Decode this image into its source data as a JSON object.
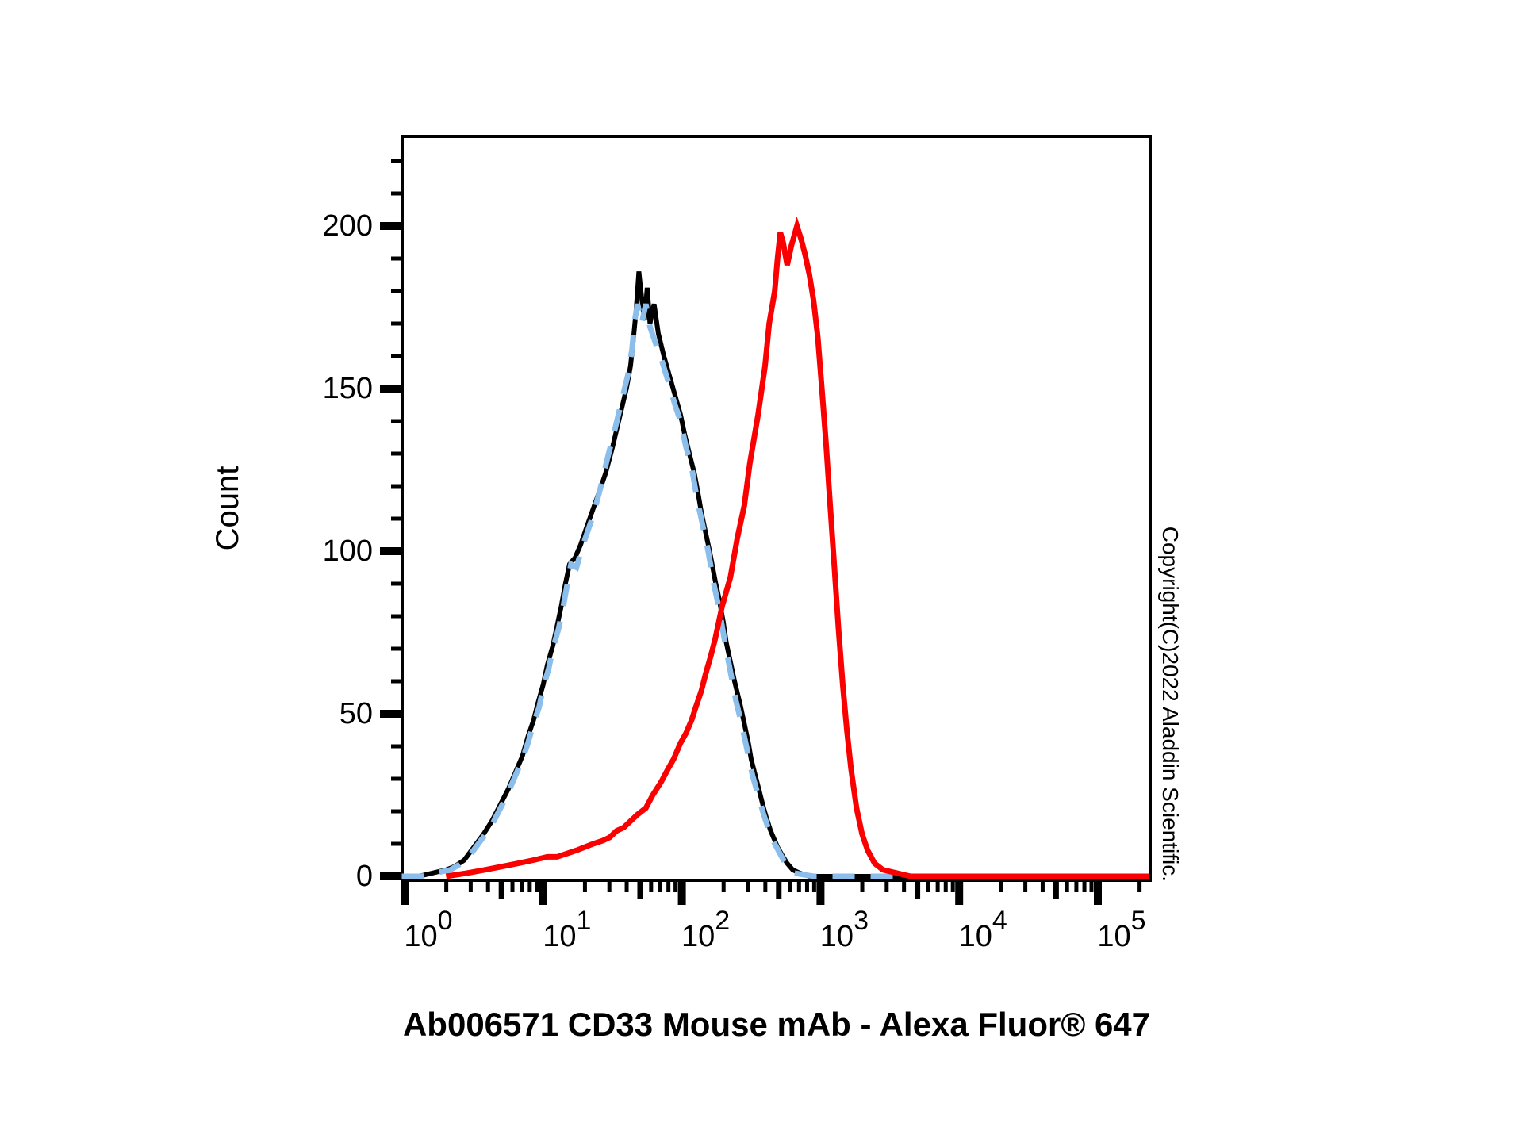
{
  "figure": {
    "title": "Ab006571 CD33 Mouse mAb - Alexa Fluor® 647",
    "y_axis_label": "Count",
    "copyright_text": "Copyright(C)2022 Aladdin Scientific.",
    "background_color": "#ffffff",
    "colors": {
      "axis": "#000000",
      "black_solid_curve": "#000000",
      "blue_dashed_curve": "#8CBEEB",
      "red_solid_curve": "#FA0000"
    }
  },
  "chart_data": {
    "type": "line",
    "variant": "flow_cytometry_histogram",
    "title": "Ab006571 CD33 Mouse mAb - Alexa Fluor® 647",
    "xlabel": "",
    "ylabel": "Count",
    "grid": false,
    "legend": null,
    "x_axis": {
      "scale": "log10",
      "range_log10": [
        -0.017,
        5.377
      ],
      "tick_base": "10",
      "major_tick_exponents": [
        0,
        1,
        2,
        3,
        4,
        5
      ],
      "minor_ticks": "2,3,4,5,6,7,8,9 per decade (5 drawn medium length)"
    },
    "y_axis": {
      "range": [
        0,
        227
      ],
      "major_ticks": [
        0,
        50,
        100,
        150,
        200
      ],
      "minor_tick_step": 10,
      "minor_tick_max": 220
    },
    "series": [
      {
        "id": "black-solid",
        "appearance": "black solid line",
        "color": "#000000",
        "line_style": "solid",
        "points_log10x_count": [
          [
            -0.02,
            0
          ],
          [
            0.1,
            0
          ],
          [
            0.2,
            1
          ],
          [
            0.3,
            2
          ],
          [
            0.36,
            3
          ],
          [
            0.43,
            5
          ],
          [
            0.5,
            9
          ],
          [
            0.57,
            13
          ],
          [
            0.63,
            17
          ],
          [
            0.69,
            22
          ],
          [
            0.75,
            27
          ],
          [
            0.8,
            32
          ],
          [
            0.85,
            37
          ],
          [
            0.89,
            43
          ],
          [
            0.93,
            48
          ],
          [
            0.96,
            53
          ],
          [
            1.0,
            59
          ],
          [
            1.03,
            65
          ],
          [
            1.07,
            71
          ],
          [
            1.1,
            77
          ],
          [
            1.13,
            83
          ],
          [
            1.16,
            90
          ],
          [
            1.19,
            96
          ],
          [
            1.23,
            98
          ],
          [
            1.27,
            102
          ],
          [
            1.31,
            107
          ],
          [
            1.36,
            113
          ],
          [
            1.41,
            119
          ],
          [
            1.45,
            124
          ],
          [
            1.5,
            132
          ],
          [
            1.55,
            141
          ],
          [
            1.6,
            150
          ],
          [
            1.63,
            157
          ],
          [
            1.65,
            165
          ],
          [
            1.67,
            174
          ],
          [
            1.69,
            186
          ],
          [
            1.71,
            178
          ],
          [
            1.73,
            171
          ],
          [
            1.75,
            181
          ],
          [
            1.77,
            170
          ],
          [
            1.8,
            176
          ],
          [
            1.83,
            167
          ],
          [
            1.87,
            160
          ],
          [
            1.91,
            154
          ],
          [
            1.95,
            148
          ],
          [
            1.99,
            142
          ],
          [
            2.02,
            136
          ],
          [
            2.06,
            129
          ],
          [
            2.09,
            124
          ],
          [
            2.12,
            117
          ],
          [
            2.14,
            112
          ],
          [
            2.17,
            106
          ],
          [
            2.2,
            100
          ],
          [
            2.24,
            91
          ],
          [
            2.27,
            85
          ],
          [
            2.3,
            78
          ],
          [
            2.32,
            72
          ],
          [
            2.35,
            66
          ],
          [
            2.38,
            60
          ],
          [
            2.42,
            53
          ],
          [
            2.45,
            47
          ],
          [
            2.48,
            41
          ],
          [
            2.5,
            36
          ],
          [
            2.53,
            31
          ],
          [
            2.56,
            26
          ],
          [
            2.59,
            21
          ],
          [
            2.61,
            18
          ],
          [
            2.64,
            14
          ],
          [
            2.66,
            12
          ],
          [
            2.69,
            9
          ],
          [
            2.73,
            6
          ],
          [
            2.76,
            4
          ],
          [
            2.8,
            2
          ],
          [
            2.85,
            1
          ],
          [
            2.92,
            0
          ],
          [
            3.3,
            0
          ],
          [
            4.2,
            0
          ],
          [
            5.37,
            0
          ]
        ]
      },
      {
        "id": "blue-dashed",
        "appearance": "light blue dashed line (overlaps black curve)",
        "color": "#8CBEEB",
        "line_style": "dashed",
        "points_log10x_count": [
          [
            -0.02,
            0
          ],
          [
            0.12,
            0
          ],
          [
            0.22,
            1
          ],
          [
            0.33,
            2
          ],
          [
            0.41,
            4
          ],
          [
            0.48,
            7
          ],
          [
            0.55,
            11
          ],
          [
            0.62,
            15
          ],
          [
            0.68,
            20
          ],
          [
            0.74,
            25
          ],
          [
            0.8,
            31
          ],
          [
            0.85,
            36
          ],
          [
            0.89,
            41
          ],
          [
            0.93,
            47
          ],
          [
            0.97,
            52
          ],
          [
            1.0,
            58
          ],
          [
            1.04,
            64
          ],
          [
            1.07,
            70
          ],
          [
            1.11,
            76
          ],
          [
            1.14,
            82
          ],
          [
            1.17,
            89
          ],
          [
            1.2,
            96
          ],
          [
            1.24,
            95
          ],
          [
            1.28,
            101
          ],
          [
            1.32,
            106
          ],
          [
            1.36,
            111
          ],
          [
            1.41,
            119
          ],
          [
            1.46,
            128
          ],
          [
            1.52,
            138
          ],
          [
            1.57,
            147
          ],
          [
            1.61,
            154
          ],
          [
            1.64,
            162
          ],
          [
            1.66,
            171
          ],
          [
            1.68,
            176
          ],
          [
            1.71,
            170
          ],
          [
            1.74,
            176
          ],
          [
            1.77,
            169
          ],
          [
            1.81,
            164
          ],
          [
            1.86,
            158
          ],
          [
            1.91,
            151
          ],
          [
            1.95,
            145
          ],
          [
            1.99,
            140
          ],
          [
            2.03,
            132
          ],
          [
            2.07,
            126
          ],
          [
            2.11,
            116
          ],
          [
            2.15,
            108
          ],
          [
            2.19,
            100
          ],
          [
            2.23,
            90
          ],
          [
            2.27,
            82
          ],
          [
            2.31,
            72
          ],
          [
            2.35,
            63
          ],
          [
            2.39,
            54
          ],
          [
            2.43,
            47
          ],
          [
            2.47,
            39
          ],
          [
            2.51,
            31
          ],
          [
            2.55,
            25
          ],
          [
            2.59,
            19
          ],
          [
            2.63,
            14
          ],
          [
            2.67,
            10
          ],
          [
            2.72,
            6
          ],
          [
            2.76,
            3
          ],
          [
            2.81,
            1
          ],
          [
            2.95,
            0
          ],
          [
            3.4,
            0
          ],
          [
            4.4,
            0
          ],
          [
            5.37,
            0
          ]
        ]
      },
      {
        "id": "red-solid",
        "appearance": "red solid line, double peak near 10^2.7-10^2.8",
        "color": "#FA0000",
        "line_style": "solid",
        "points_log10x_count": [
          [
            0.3,
            0
          ],
          [
            0.45,
            1
          ],
          [
            0.58,
            2
          ],
          [
            0.7,
            3
          ],
          [
            0.82,
            4
          ],
          [
            0.93,
            5
          ],
          [
            1.03,
            6
          ],
          [
            1.1,
            6
          ],
          [
            1.17,
            7
          ],
          [
            1.24,
            8
          ],
          [
            1.3,
            9
          ],
          [
            1.36,
            10
          ],
          [
            1.43,
            11
          ],
          [
            1.48,
            12
          ],
          [
            1.53,
            14
          ],
          [
            1.58,
            15
          ],
          [
            1.63,
            17
          ],
          [
            1.68,
            19
          ],
          [
            1.74,
            21
          ],
          [
            1.79,
            25
          ],
          [
            1.85,
            29
          ],
          [
            1.9,
            33
          ],
          [
            1.94,
            36
          ],
          [
            1.99,
            41
          ],
          [
            2.03,
            44
          ],
          [
            2.07,
            48
          ],
          [
            2.1,
            52
          ],
          [
            2.14,
            57
          ],
          [
            2.17,
            62
          ],
          [
            2.21,
            68
          ],
          [
            2.24,
            73
          ],
          [
            2.29,
            83
          ],
          [
            2.35,
            92
          ],
          [
            2.4,
            104
          ],
          [
            2.45,
            114
          ],
          [
            2.49,
            127
          ],
          [
            2.55,
            142
          ],
          [
            2.6,
            157
          ],
          [
            2.63,
            170
          ],
          [
            2.67,
            180
          ],
          [
            2.69,
            190
          ],
          [
            2.71,
            198
          ],
          [
            2.73,
            195
          ],
          [
            2.76,
            188
          ],
          [
            2.79,
            194
          ],
          [
            2.83,
            200
          ],
          [
            2.86,
            196
          ],
          [
            2.89,
            191
          ],
          [
            2.92,
            185
          ],
          [
            2.95,
            177
          ],
          [
            2.98,
            166
          ],
          [
            3.01,
            150
          ],
          [
            3.04,
            133
          ],
          [
            3.07,
            114
          ],
          [
            3.1,
            95
          ],
          [
            3.13,
            76
          ],
          [
            3.16,
            59
          ],
          [
            3.19,
            45
          ],
          [
            3.22,
            33
          ],
          [
            3.26,
            21
          ],
          [
            3.3,
            13
          ],
          [
            3.34,
            8
          ],
          [
            3.39,
            4
          ],
          [
            3.45,
            2
          ],
          [
            3.55,
            1
          ],
          [
            3.65,
            0
          ],
          [
            4.2,
            0
          ],
          [
            5.37,
            0
          ]
        ]
      }
    ]
  }
}
